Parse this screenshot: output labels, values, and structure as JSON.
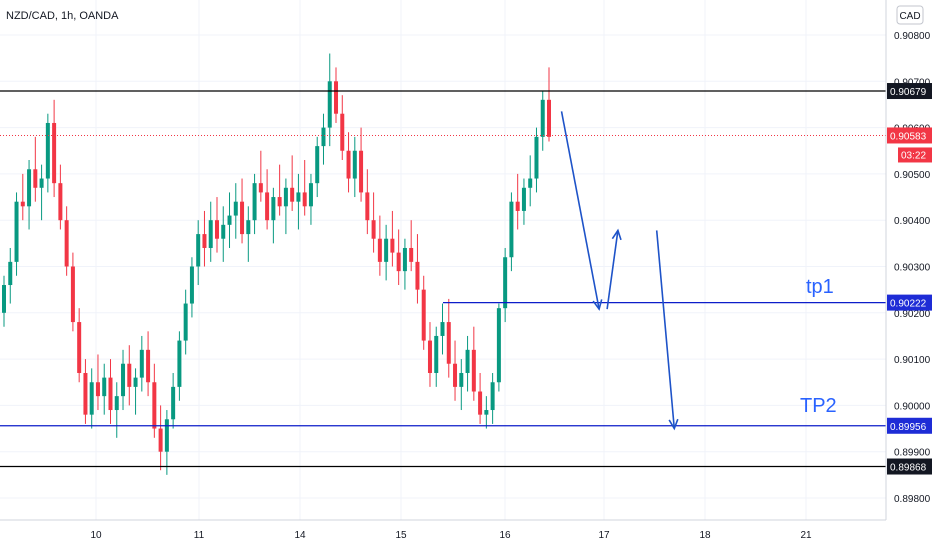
{
  "chart_data": {
    "type": "candlestick",
    "title": "NZD/CAD, 1h, OANDA",
    "currency": "CAD",
    "y_ticks": [
      0.908,
      0.907,
      0.906,
      0.905,
      0.904,
      0.903,
      0.902,
      0.901,
      0.9,
      0.899,
      0.898
    ],
    "y_tick_labels": [
      "0.90800",
      "0.90700",
      "0.90600",
      "0.90500",
      "0.90400",
      "0.90300",
      "0.90200",
      "0.90100",
      "0.90000",
      "0.89900",
      "0.89800"
    ],
    "ylim": [
      0.8973,
      0.909
    ],
    "x_ticks": [
      "10",
      "11",
      "14",
      "15",
      "16",
      "17",
      "18",
      "21"
    ],
    "price_lines": [
      {
        "value": 0.90679,
        "label": "0.90679",
        "color": "#000000",
        "style": "solid"
      },
      {
        "value": 0.90222,
        "label": "0.90222",
        "color": "#0d1dc9",
        "style": "solid"
      },
      {
        "value": 0.89956,
        "label": "0.89956",
        "color": "#0d1dc9",
        "style": "solid"
      },
      {
        "value": 0.89868,
        "label": "0.89868",
        "color": "#000000",
        "style": "solid"
      }
    ],
    "current_price": {
      "value": 0.90583,
      "label": "0.90583",
      "countdown": "03:22",
      "color": "#f23645"
    },
    "annotations": [
      {
        "text": "tp1",
        "value": 0.90222
      },
      {
        "text": "TP2",
        "value": 0.89956
      }
    ],
    "colors": {
      "up": "#089981",
      "down": "#f23645",
      "projection": "#1e53c8"
    },
    "candles": [
      [
        0.902,
        0.9028,
        0.9017,
        0.9026
      ],
      [
        0.9026,
        0.9034,
        0.9022,
        0.9031
      ],
      [
        0.9031,
        0.9046,
        0.9028,
        0.9044
      ],
      [
        0.9044,
        0.905,
        0.904,
        0.9043
      ],
      [
        0.9043,
        0.9053,
        0.9038,
        0.9051
      ],
      [
        0.9051,
        0.9058,
        0.9044,
        0.9047
      ],
      [
        0.9047,
        0.9052,
        0.904,
        0.9049
      ],
      [
        0.9049,
        0.9063,
        0.9046,
        0.9061
      ],
      [
        0.9061,
        0.9066,
        0.9045,
        0.9048
      ],
      [
        0.9048,
        0.9052,
        0.9038,
        0.904
      ],
      [
        0.904,
        0.9043,
        0.9028,
        0.903
      ],
      [
        0.903,
        0.9033,
        0.9016,
        0.9018
      ],
      [
        0.9018,
        0.9021,
        0.9005,
        0.9007
      ],
      [
        0.9007,
        0.901,
        0.8996,
        0.8998
      ],
      [
        0.8998,
        0.9008,
        0.8995,
        0.9005
      ],
      [
        0.9005,
        0.9011,
        0.8999,
        0.9002
      ],
      [
        0.9002,
        0.9009,
        0.8998,
        0.9006
      ],
      [
        0.9006,
        0.901,
        0.8996,
        0.8999
      ],
      [
        0.8999,
        0.9005,
        0.8993,
        0.9002
      ],
      [
        0.9002,
        0.9012,
        0.8999,
        0.9009
      ],
      [
        0.9009,
        0.9013,
        0.9,
        0.9004
      ],
      [
        0.9004,
        0.9008,
        0.8998,
        0.9006
      ],
      [
        0.9006,
        0.9015,
        0.9003,
        0.9012
      ],
      [
        0.9012,
        0.9016,
        0.9002,
        0.9005
      ],
      [
        0.9005,
        0.9009,
        0.8993,
        0.8995
      ],
      [
        0.8995,
        0.9,
        0.8986,
        0.899
      ],
      [
        0.899,
        0.8999,
        0.8985,
        0.8997
      ],
      [
        0.8997,
        0.9007,
        0.8995,
        0.9004
      ],
      [
        0.9004,
        0.9016,
        0.9001,
        0.9014
      ],
      [
        0.9014,
        0.9025,
        0.9011,
        0.9022
      ],
      [
        0.9022,
        0.9032,
        0.9019,
        0.903
      ],
      [
        0.903,
        0.904,
        0.9026,
        0.9037
      ],
      [
        0.9037,
        0.9042,
        0.903,
        0.9034
      ],
      [
        0.9034,
        0.9044,
        0.9031,
        0.904
      ],
      [
        0.904,
        0.9045,
        0.9033,
        0.9036
      ],
      [
        0.9036,
        0.9043,
        0.9031,
        0.9039
      ],
      [
        0.9039,
        0.9046,
        0.9034,
        0.9041
      ],
      [
        0.9041,
        0.9048,
        0.9036,
        0.9044
      ],
      [
        0.9044,
        0.9049,
        0.9035,
        0.9037
      ],
      [
        0.9037,
        0.9043,
        0.9031,
        0.904
      ],
      [
        0.904,
        0.905,
        0.9037,
        0.9048
      ],
      [
        0.9048,
        0.9055,
        0.9044,
        0.9046
      ],
      [
        0.9046,
        0.9051,
        0.9038,
        0.904
      ],
      [
        0.904,
        0.9047,
        0.9035,
        0.9045
      ],
      [
        0.9045,
        0.9052,
        0.9041,
        0.9043
      ],
      [
        0.9043,
        0.9049,
        0.9037,
        0.9047
      ],
      [
        0.9047,
        0.9054,
        0.9042,
        0.9044
      ],
      [
        0.9044,
        0.905,
        0.9038,
        0.9046
      ],
      [
        0.9046,
        0.9053,
        0.9041,
        0.9043
      ],
      [
        0.9043,
        0.905,
        0.9039,
        0.9048
      ],
      [
        0.9048,
        0.9058,
        0.9045,
        0.9056
      ],
      [
        0.9056,
        0.9063,
        0.9052,
        0.906
      ],
      [
        0.906,
        0.9076,
        0.9056,
        0.907
      ],
      [
        0.907,
        0.9073,
        0.9061,
        0.9063
      ],
      [
        0.9063,
        0.9067,
        0.9053,
        0.9055
      ],
      [
        0.9055,
        0.9059,
        0.9046,
        0.9049
      ],
      [
        0.9049,
        0.9058,
        0.9045,
        0.9055
      ],
      [
        0.9055,
        0.906,
        0.9044,
        0.9046
      ],
      [
        0.9046,
        0.9051,
        0.9037,
        0.904
      ],
      [
        0.904,
        0.9046,
        0.9033,
        0.9036
      ],
      [
        0.9036,
        0.9041,
        0.9028,
        0.9031
      ],
      [
        0.9031,
        0.9039,
        0.9027,
        0.9036
      ],
      [
        0.9036,
        0.9042,
        0.903,
        0.9033
      ],
      [
        0.9033,
        0.9038,
        0.9026,
        0.9029
      ],
      [
        0.9029,
        0.9036,
        0.9025,
        0.9034
      ],
      [
        0.9034,
        0.904,
        0.9029,
        0.9031
      ],
      [
        0.9031,
        0.9037,
        0.9022,
        0.9025
      ],
      [
        0.9025,
        0.9028,
        0.9012,
        0.9014
      ],
      [
        0.9014,
        0.9018,
        0.9004,
        0.9007
      ],
      [
        0.9007,
        0.9017,
        0.9004,
        0.9015
      ],
      [
        0.9015,
        0.9022,
        0.9011,
        0.9018
      ],
      [
        0.9018,
        0.9023,
        0.9006,
        0.9009
      ],
      [
        0.9009,
        0.9014,
        0.9001,
        0.9004
      ],
      [
        0.9004,
        0.901,
        0.8999,
        0.9007
      ],
      [
        0.9007,
        0.9015,
        0.9003,
        0.9012
      ],
      [
        0.9012,
        0.9017,
        0.9001,
        0.9003
      ],
      [
        0.9003,
        0.9007,
        0.8996,
        0.8998
      ],
      [
        0.8998,
        0.9002,
        0.8995,
        0.8999
      ],
      [
        0.8999,
        0.9007,
        0.8996,
        0.9005
      ],
      [
        0.9005,
        0.9022,
        0.9003,
        0.9021
      ],
      [
        0.9021,
        0.9034,
        0.9018,
        0.9032
      ],
      [
        0.9032,
        0.9046,
        0.9029,
        0.9044
      ],
      [
        0.9044,
        0.905,
        0.9038,
        0.9042
      ],
      [
        0.9042,
        0.9049,
        0.9039,
        0.9047
      ],
      [
        0.9047,
        0.9054,
        0.9043,
        0.9049
      ],
      [
        0.9049,
        0.906,
        0.9046,
        0.9058
      ],
      [
        0.9058,
        0.9068,
        0.9055,
        0.9066
      ],
      [
        0.9066,
        0.9073,
        0.9057,
        0.9058
      ]
    ],
    "projection_path": [
      {
        "x_after_last_candle": 2,
        "y": 0.90635
      },
      {
        "x_after_last_candle": 8,
        "y": 0.90208
      },
      {
        "x_after_last_candle": 11,
        "y": 0.90378
      },
      {
        "x_after_last_candle": 14,
        "y": 0.90378
      },
      {
        "x_after_last_candle": 20,
        "y": 0.8995
      }
    ]
  }
}
